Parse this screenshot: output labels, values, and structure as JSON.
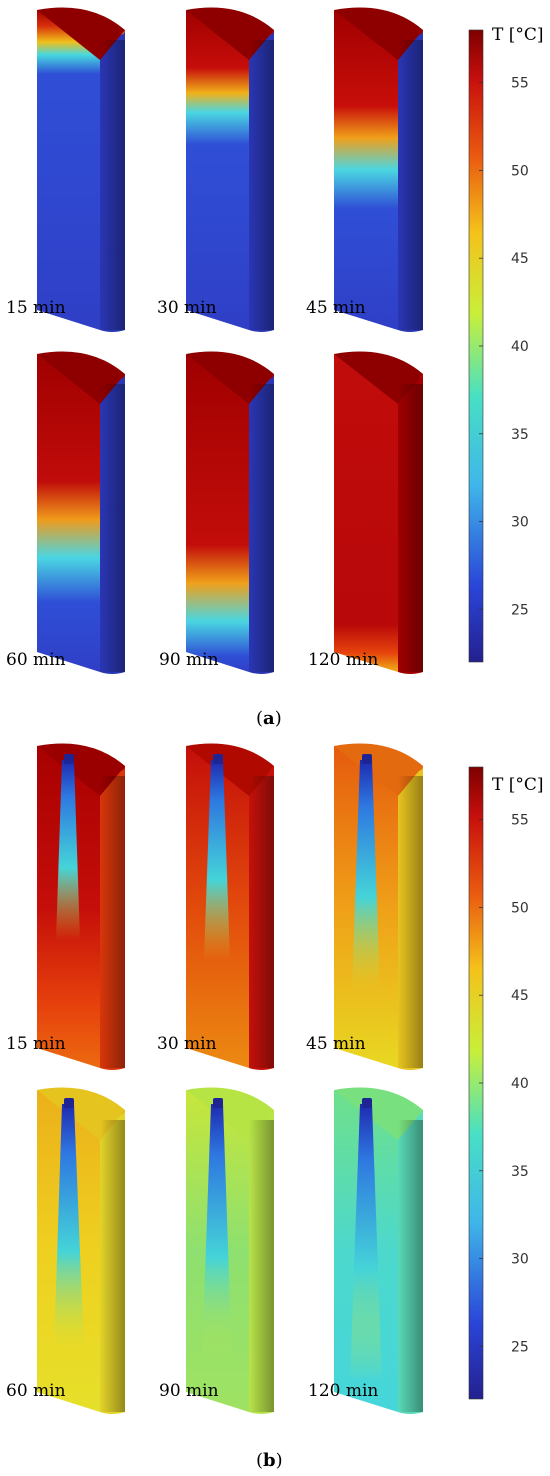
{
  "colorbar": {
    "title": "T [°C]",
    "ticks": [
      "55",
      "50",
      "45",
      "40",
      "35",
      "30",
      "25"
    ],
    "range": [
      22,
      58
    ]
  },
  "panel_a": {
    "label_open": "(",
    "label_letter": "a",
    "label_close": ")",
    "times": [
      "15 min",
      "30 min",
      "45 min",
      "60 min",
      "90 min",
      "120 min"
    ]
  },
  "panel_b": {
    "label_open": "(",
    "label_letter": "b",
    "label_close": ")",
    "times": [
      "15 min",
      "30 min",
      "45 min",
      "60 min",
      "90 min",
      "120 min"
    ]
  },
  "colors": {
    "hot": "#8b0000",
    "red": "#c40b0a",
    "orange": "#e8580d",
    "yellow": "#f0c81a",
    "green": "#7fe07a",
    "cyan": "#3fd6e0",
    "blue": "#2f4fd6",
    "cold": "#26279b"
  }
}
